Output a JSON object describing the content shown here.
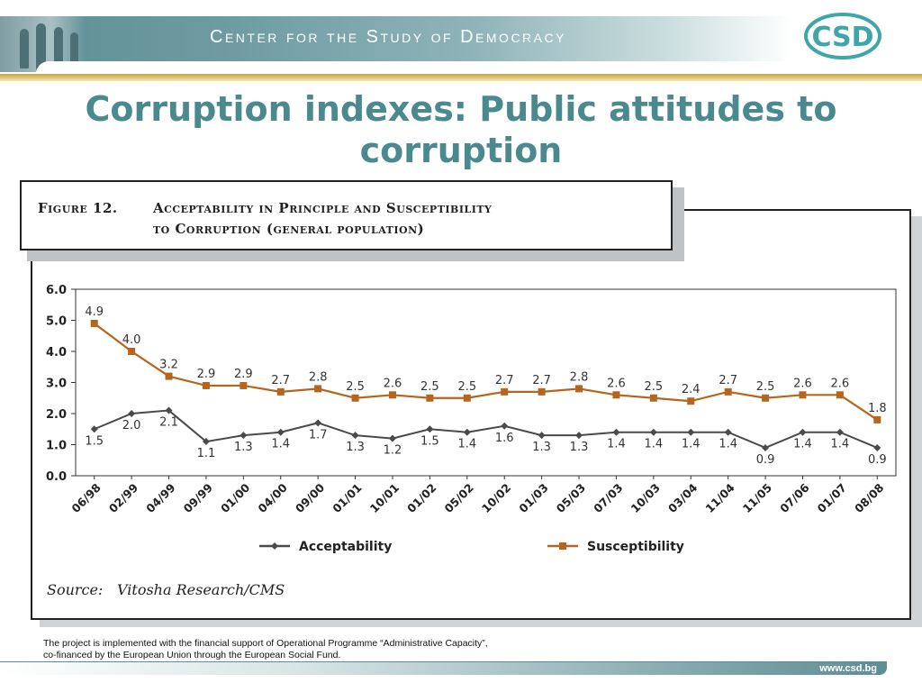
{
  "header": {
    "org_name": "Center for the Study of Democracy",
    "logo_text": "CSD"
  },
  "slide": {
    "title_line1": "Corruption indexes: Public attitudes to",
    "title_line2": "corruption"
  },
  "figure": {
    "label": "Figure 12.",
    "caption_line1": "Acceptability in Principle and Susceptibility",
    "caption_line2": "to Corruption (general population)",
    "source_label": "Source:",
    "source_value": "Vitosha Research/CMS"
  },
  "chart_data": {
    "type": "line",
    "categories": [
      "06/98",
      "02/99",
      "04/99",
      "09/99",
      "01/00",
      "04/00",
      "09/00",
      "01/01",
      "10/01",
      "01/02",
      "05/02",
      "10/02",
      "01/03",
      "05/03",
      "07/03",
      "10/03",
      "03/04",
      "11/04",
      "11/05",
      "07/06",
      "01/07",
      "08/08"
    ],
    "series": [
      {
        "name": "Acceptability",
        "values": [
          1.5,
          2.0,
          2.1,
          1.1,
          1.3,
          1.4,
          1.7,
          1.3,
          1.2,
          1.5,
          1.4,
          1.6,
          1.3,
          1.3,
          1.4,
          1.4,
          1.4,
          1.4,
          0.9,
          1.4,
          1.4,
          0.9
        ],
        "color": "#4a4a4a",
        "marker": "diamond"
      },
      {
        "name": "Susceptibility",
        "values": [
          4.9,
          4.0,
          3.2,
          2.9,
          2.9,
          2.7,
          2.8,
          2.5,
          2.6,
          2.5,
          2.5,
          2.7,
          2.7,
          2.8,
          2.6,
          2.5,
          2.4,
          2.7,
          2.5,
          2.6,
          2.6,
          1.8
        ],
        "color": "#b5651d",
        "marker": "square"
      }
    ],
    "y_ticks": [
      "0.0",
      "1.0",
      "2.0",
      "3.0",
      "4.0",
      "5.0",
      "6.0"
    ],
    "ylim": [
      0,
      6
    ],
    "grid": false,
    "legend_position": "bottom"
  },
  "footer": {
    "note_line1": "The project is implemented with the financial support of Operational Programme “Administrative Capacity”,",
    "note_line2": "co-financed by the European Union through the European Social Fund.",
    "url": "www.csd.bg"
  }
}
